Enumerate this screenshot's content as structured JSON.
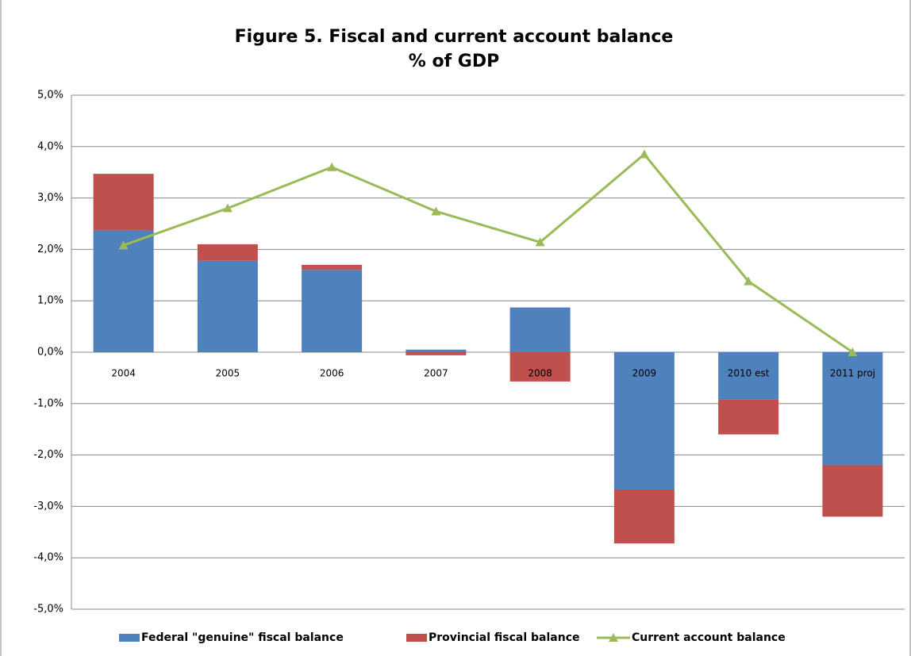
{
  "chart_data": {
    "type": "bar-line",
    "title": "Figure 5. Fiscal and current account balance",
    "subtitle": "% of GDP",
    "categories": [
      "2004",
      "2005",
      "2006",
      "2007",
      "2008",
      "2009",
      "2010 est",
      "2011 proj"
    ],
    "series": [
      {
        "name": "Federal \"genuine\" fiscal balance",
        "type": "bar",
        "color": "#4f81bd",
        "values": [
          2.37,
          1.78,
          1.6,
          0.05,
          0.87,
          -2.67,
          -0.92,
          -2.2
        ]
      },
      {
        "name": "Provincial fiscal balance",
        "type": "bar",
        "color": "#c0504d",
        "values": [
          1.1,
          0.32,
          0.1,
          -0.06,
          -0.57,
          -1.05,
          -0.68,
          -1.0
        ]
      },
      {
        "name": "Current account balance",
        "type": "line",
        "color": "#9bbb59",
        "values": [
          2.08,
          2.8,
          3.6,
          2.74,
          2.14,
          3.85,
          1.38,
          0.0
        ]
      }
    ],
    "stacked": true,
    "ylim": [
      -5,
      5
    ],
    "yticks": [
      {
        "value": -5,
        "label": "-5,0%"
      },
      {
        "value": -4,
        "label": "-4,0%"
      },
      {
        "value": -3,
        "label": "-3,0%"
      },
      {
        "value": -2,
        "label": "-2,0%"
      },
      {
        "value": -1,
        "label": "-1,0%"
      },
      {
        "value": 0,
        "label": "0,0%"
      },
      {
        "value": 1,
        "label": "1,0%"
      },
      {
        "value": 2,
        "label": "2,0%"
      },
      {
        "value": 3,
        "label": "3,0%"
      },
      {
        "value": 4,
        "label": "4,0%"
      },
      {
        "value": 5,
        "label": "5,0%"
      }
    ],
    "grid": true,
    "legend": "bottom"
  }
}
